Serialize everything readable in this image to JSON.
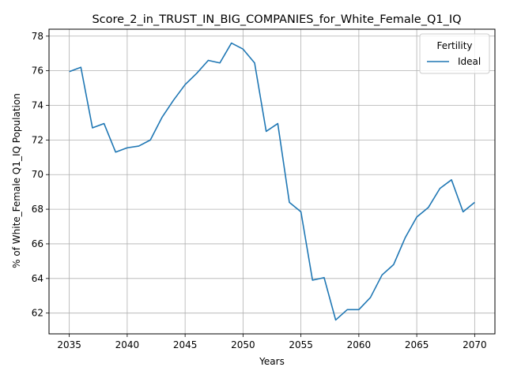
{
  "chart_data": {
    "type": "line",
    "title": "Score_2_in_TRUST_IN_BIG_COMPANIES_for_White_Female_Q1_IQ",
    "xlabel": "Years",
    "ylabel": "% of White_Female Q1_IQ Population",
    "xlim": [
      2033.25,
      2071.75
    ],
    "ylim": [
      60.8,
      78.4
    ],
    "xticks": [
      2035,
      2040,
      2045,
      2050,
      2055,
      2060,
      2065,
      2070
    ],
    "yticks": [
      62,
      64,
      66,
      68,
      70,
      72,
      74,
      76,
      78
    ],
    "grid": true,
    "legend": {
      "title": "Fertility",
      "position": "top-right"
    },
    "series": [
      {
        "name": "Ideal",
        "color": "#1f77b4",
        "x": [
          2035,
          2036,
          2037,
          2038,
          2039,
          2040,
          2041,
          2042,
          2043,
          2044,
          2045,
          2046,
          2047,
          2048,
          2049,
          2050,
          2051,
          2052,
          2053,
          2054,
          2055,
          2056,
          2057,
          2058,
          2059,
          2060,
          2061,
          2062,
          2063,
          2064,
          2065,
          2066,
          2067,
          2068,
          2069,
          2070
        ],
        "y": [
          75.95,
          76.2,
          72.7,
          72.95,
          71.3,
          71.55,
          71.65,
          72.0,
          73.3,
          74.3,
          75.2,
          75.85,
          76.6,
          76.45,
          77.6,
          77.25,
          76.45,
          72.5,
          72.95,
          68.4,
          67.85,
          63.9,
          64.05,
          61.6,
          62.2,
          62.2,
          62.9,
          64.2,
          64.8,
          66.35,
          67.55,
          68.1,
          69.2,
          69.7,
          67.85,
          68.4
        ]
      }
    ]
  }
}
